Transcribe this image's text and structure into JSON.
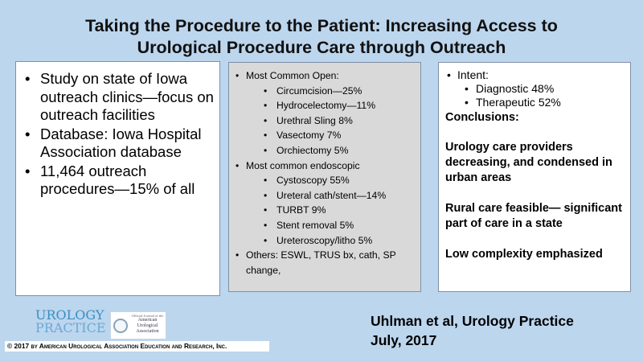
{
  "title": {
    "line1": "Taking the Procedure to the Patient: Increasing Access to",
    "line2": "Urological Procedure Care through Outreach"
  },
  "left": {
    "bullets": [
      "Study on state of Iowa outreach clinics—focus on outreach facilities",
      "Database: Iowa Hospital Association database",
      "11,464 outreach procedures—15% of all"
    ]
  },
  "middle": {
    "open_heading": "Most Common Open:",
    "open_items": [
      "Circumcision—25%",
      "Hydrocelectomy—11%",
      "Urethral Sling 8%",
      "Vasectomy 7%",
      "Orchiectomy  5%"
    ],
    "endo_heading": "Most common endoscopic",
    "endo_items": [
      "Cystoscopy 55%",
      "Ureteral cath/stent—14%",
      "TURBT 9%",
      "Stent removal 5%",
      "Ureteroscopy/litho 5%"
    ],
    "others": "Others: ESWL, TRUS bx, cath, SP change,"
  },
  "right": {
    "intent_heading": "Intent:",
    "intent_items": [
      "Diagnostic 48%",
      "Therapeutic 52%"
    ],
    "conclusions_label": "Conclusions:",
    "conclusions": [
      "Urology care providers decreasing, and condensed in urban areas",
      "Rural care feasible— significant part of care in a state",
      "Low complexity emphasized"
    ]
  },
  "citation": {
    "line1": "Uhlman et al, Urology Practice",
    "line2": "July, 2017"
  },
  "logo": {
    "line1": "UROLOGY",
    "line2": "PRACTICE",
    "journal_prefix": "Official Journal of the",
    "journal_name_1": "American",
    "journal_name_2": "Urological",
    "journal_name_3": "Association"
  },
  "copyright": "© 2017 by American Urological Association Education and Research, Inc.",
  "colors": {
    "background": "#bcd6ee",
    "middle_panel": "#d9d9d9",
    "logo_blue": "#3a8fc2"
  }
}
